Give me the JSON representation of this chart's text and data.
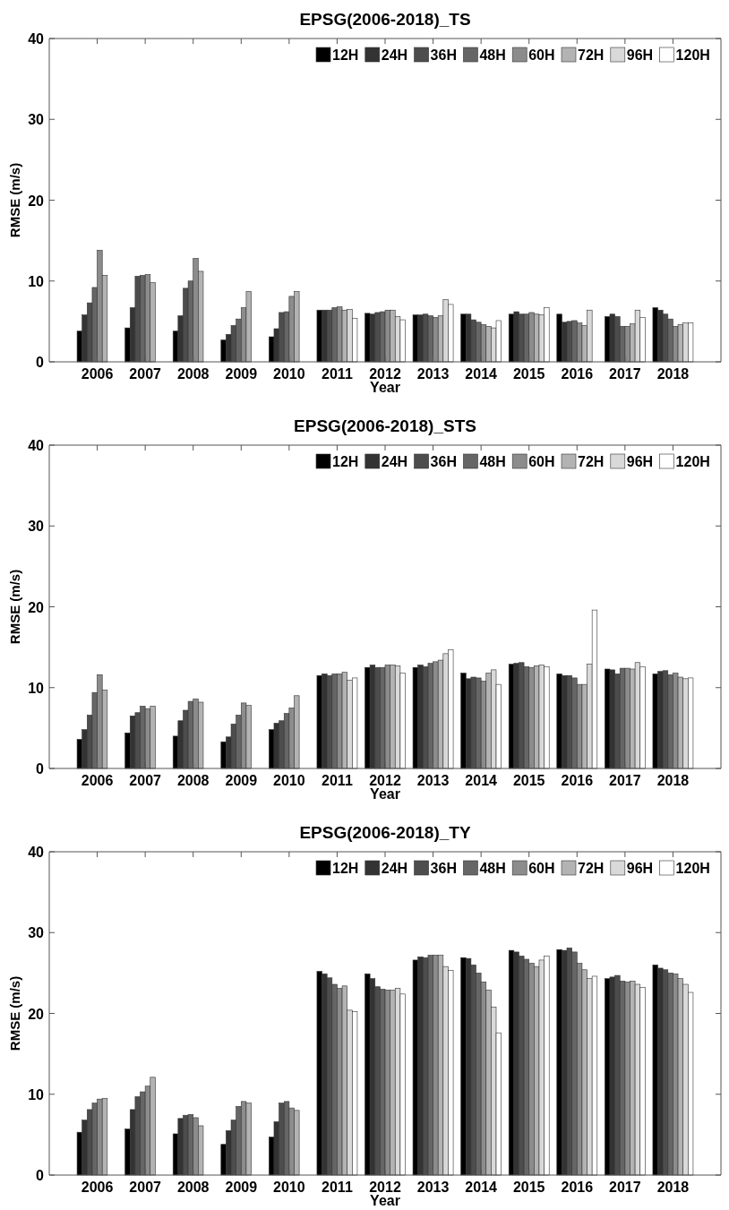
{
  "chart_data": [
    {
      "type": "bar",
      "title": "EPSG(2006-2018)_TS",
      "xlabel": "Year",
      "ylabel": "RMSE (m/s)",
      "categories": [
        "2006",
        "2007",
        "2008",
        "2009",
        "2010",
        "2011",
        "2012",
        "2013",
        "2014",
        "2015",
        "2016",
        "2017",
        "2018"
      ],
      "ylim": [
        0,
        40
      ],
      "yticks": [
        0,
        10,
        20,
        30,
        40
      ],
      "legend": "top right",
      "series": [
        {
          "name": "12H",
          "color": "#000000",
          "values": [
            3.8,
            4.2,
            3.8,
            2.7,
            3.1,
            6.4,
            6.0,
            5.8,
            5.9,
            5.9,
            5.9,
            5.6,
            6.7
          ]
        },
        {
          "name": "24H",
          "color": "#333333",
          "values": [
            5.8,
            6.7,
            5.7,
            3.4,
            4.1,
            6.4,
            5.9,
            5.8,
            5.9,
            6.2,
            4.9,
            5.9,
            6.4
          ]
        },
        {
          "name": "36H",
          "color": "#4d4d4d",
          "values": [
            7.3,
            10.6,
            9.1,
            4.5,
            6.1,
            6.4,
            6.1,
            5.9,
            5.2,
            5.9,
            5.0,
            5.6,
            5.9
          ]
        },
        {
          "name": "48H",
          "color": "#666666",
          "values": [
            9.2,
            10.7,
            10.0,
            5.3,
            6.2,
            6.7,
            6.2,
            5.7,
            4.9,
            5.9,
            5.1,
            4.4,
            5.3
          ]
        },
        {
          "name": "60H",
          "color": "#8c8c8c",
          "values": [
            13.8,
            10.8,
            12.8,
            6.7,
            8.1,
            6.8,
            6.4,
            5.5,
            4.6,
            6.1,
            4.8,
            4.4,
            4.4
          ]
        },
        {
          "name": "72H",
          "color": "#b3b3b3",
          "values": [
            10.7,
            9.8,
            11.2,
            8.7,
            8.7,
            6.4,
            6.4,
            5.7,
            4.4,
            5.9,
            4.5,
            4.7,
            4.6
          ]
        },
        {
          "name": "96H",
          "color": "#d9d9d9",
          "values": [
            null,
            null,
            null,
            null,
            null,
            6.5,
            5.6,
            7.7,
            4.2,
            5.8,
            6.4,
            6.4,
            4.8
          ]
        },
        {
          "name": "120H",
          "color": "#ffffff",
          "values": [
            null,
            null,
            null,
            null,
            null,
            5.4,
            5.2,
            7.1,
            5.1,
            6.7,
            null,
            5.5,
            4.8
          ]
        }
      ]
    },
    {
      "type": "bar",
      "title": "EPSG(2006-2018)_STS",
      "xlabel": "Year",
      "ylabel": "RMSE (m/s)",
      "categories": [
        "2006",
        "2007",
        "2008",
        "2009",
        "2010",
        "2011",
        "2012",
        "2013",
        "2014",
        "2015",
        "2016",
        "2017",
        "2018"
      ],
      "ylim": [
        0,
        40
      ],
      "yticks": [
        0,
        10,
        20,
        30,
        40
      ],
      "legend": "top right",
      "series": [
        {
          "name": "12H",
          "color": "#000000",
          "values": [
            3.6,
            4.4,
            4.0,
            3.3,
            4.8,
            11.5,
            12.5,
            12.5,
            11.8,
            12.9,
            11.7,
            12.3,
            11.7
          ]
        },
        {
          "name": "24H",
          "color": "#333333",
          "values": [
            4.8,
            6.5,
            5.9,
            3.9,
            5.6,
            11.7,
            12.8,
            12.8,
            11.1,
            13.0,
            11.5,
            12.2,
            12.0
          ]
        },
        {
          "name": "36H",
          "color": "#4d4d4d",
          "values": [
            6.6,
            6.9,
            7.2,
            5.5,
            5.9,
            11.5,
            12.5,
            12.6,
            11.3,
            13.1,
            11.5,
            11.7,
            12.1
          ]
        },
        {
          "name": "48H",
          "color": "#666666",
          "values": [
            9.4,
            7.7,
            8.3,
            6.6,
            6.8,
            11.7,
            12.5,
            13.0,
            11.2,
            12.6,
            11.2,
            12.4,
            11.6
          ]
        },
        {
          "name": "60H",
          "color": "#8c8c8c",
          "values": [
            11.6,
            7.4,
            8.6,
            8.1,
            7.5,
            11.7,
            12.8,
            13.2,
            10.8,
            12.5,
            10.4,
            12.4,
            11.8
          ]
        },
        {
          "name": "72H",
          "color": "#b3b3b3",
          "values": [
            9.7,
            7.7,
            8.2,
            7.8,
            9.0,
            11.9,
            12.8,
            13.4,
            11.8,
            12.7,
            10.4,
            12.3,
            11.3
          ]
        },
        {
          "name": "96H",
          "color": "#d9d9d9",
          "values": [
            null,
            null,
            null,
            null,
            null,
            10.9,
            12.7,
            14.2,
            12.2,
            12.8,
            12.9,
            13.1,
            11.1
          ]
        },
        {
          "name": "120H",
          "color": "#ffffff",
          "values": [
            null,
            null,
            null,
            null,
            null,
            11.2,
            11.8,
            14.7,
            10.4,
            12.6,
            19.6,
            12.6,
            11.2
          ]
        }
      ]
    },
    {
      "type": "bar",
      "title": "EPSG(2006-2018)_TY",
      "xlabel": "Year",
      "ylabel": "RMSE (m/s)",
      "categories": [
        "2006",
        "2007",
        "2008",
        "2009",
        "2010",
        "2011",
        "2012",
        "2013",
        "2014",
        "2015",
        "2016",
        "2017",
        "2018"
      ],
      "ylim": [
        0,
        40
      ],
      "yticks": [
        0,
        10,
        20,
        30,
        40
      ],
      "legend": "top right",
      "series": [
        {
          "name": "12H",
          "color": "#000000",
          "values": [
            5.3,
            5.7,
            5.1,
            3.8,
            4.7,
            25.2,
            24.9,
            26.6,
            26.9,
            27.8,
            27.9,
            24.3,
            26.0
          ]
        },
        {
          "name": "24H",
          "color": "#333333",
          "values": [
            6.8,
            8.1,
            7.0,
            5.5,
            6.6,
            24.9,
            24.3,
            27.0,
            26.8,
            27.6,
            27.8,
            24.5,
            25.6
          ]
        },
        {
          "name": "36H",
          "color": "#4d4d4d",
          "values": [
            8.1,
            9.7,
            7.4,
            6.8,
            8.9,
            24.4,
            23.3,
            26.9,
            26.0,
            27.1,
            28.1,
            24.7,
            25.4
          ]
        },
        {
          "name": "48H",
          "color": "#666666",
          "values": [
            8.9,
            10.3,
            7.5,
            8.5,
            9.1,
            23.6,
            23.0,
            27.2,
            25.0,
            26.7,
            27.6,
            24.0,
            25.0
          ]
        },
        {
          "name": "60H",
          "color": "#8c8c8c",
          "values": [
            9.4,
            11.0,
            7.1,
            9.1,
            8.3,
            23.1,
            22.9,
            27.2,
            23.9,
            26.2,
            26.2,
            23.9,
            24.9
          ]
        },
        {
          "name": "72H",
          "color": "#b3b3b3",
          "values": [
            9.5,
            12.1,
            6.1,
            8.9,
            8.0,
            23.4,
            22.9,
            27.2,
            22.9,
            25.8,
            25.4,
            24.0,
            24.3
          ]
        },
        {
          "name": "96H",
          "color": "#d9d9d9",
          "values": [
            null,
            null,
            null,
            null,
            null,
            20.4,
            23.1,
            25.8,
            20.8,
            26.6,
            24.3,
            23.6,
            23.6
          ]
        },
        {
          "name": "120H",
          "color": "#ffffff",
          "values": [
            null,
            null,
            null,
            null,
            null,
            20.2,
            22.4,
            25.3,
            17.6,
            27.1,
            24.6,
            23.2,
            22.6
          ]
        }
      ]
    }
  ]
}
